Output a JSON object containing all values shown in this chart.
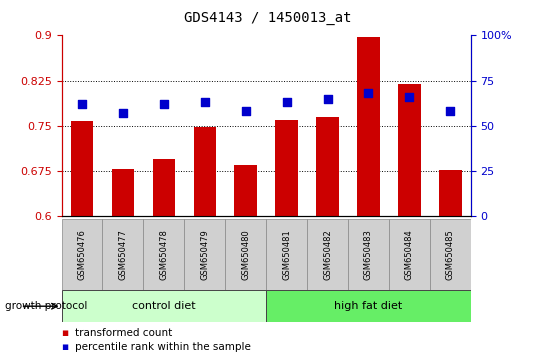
{
  "title": "GDS4143 / 1450013_at",
  "samples": [
    "GSM650476",
    "GSM650477",
    "GSM650478",
    "GSM650479",
    "GSM650480",
    "GSM650481",
    "GSM650482",
    "GSM650483",
    "GSM650484",
    "GSM650485"
  ],
  "transformed_count": [
    0.758,
    0.678,
    0.695,
    0.748,
    0.685,
    0.76,
    0.765,
    0.898,
    0.82,
    0.677
  ],
  "percentile_rank": [
    62,
    57,
    62,
    63,
    58,
    63,
    65,
    68,
    66,
    58
  ],
  "ylim": [
    0.6,
    0.9
  ],
  "yticks_left": [
    0.6,
    0.675,
    0.75,
    0.825,
    0.9
  ],
  "yticks_right": [
    0,
    25,
    50,
    75,
    100
  ],
  "ytick_labels_left": [
    "0.6",
    "0.675",
    "0.75",
    "0.825",
    "0.9"
  ],
  "ytick_labels_right": [
    "0",
    "25",
    "50",
    "75",
    "100%"
  ],
  "grid_values": [
    0.675,
    0.75,
    0.825
  ],
  "bar_color": "#cc0000",
  "dot_color": "#0000cc",
  "control_diet_label": "control diet",
  "high_fat_diet_label": "high fat diet",
  "control_diet_color": "#ccffcc",
  "high_fat_diet_color": "#66ee66",
  "group_label_header": "growth protocol",
  "legend_bar_label": "transformed count",
  "legend_dot_label": "percentile rank within the sample",
  "left_tick_color": "#cc0000",
  "right_tick_color": "#0000cc",
  "bar_width": 0.55,
  "dot_size": 40,
  "title_fontsize": 10,
  "tick_fontsize": 8,
  "sample_fontsize": 6,
  "group_fontsize": 8,
  "legend_fontsize": 7.5,
  "sample_box_color": "#d0d0d0",
  "n_control": 5,
  "n_high_fat": 5
}
